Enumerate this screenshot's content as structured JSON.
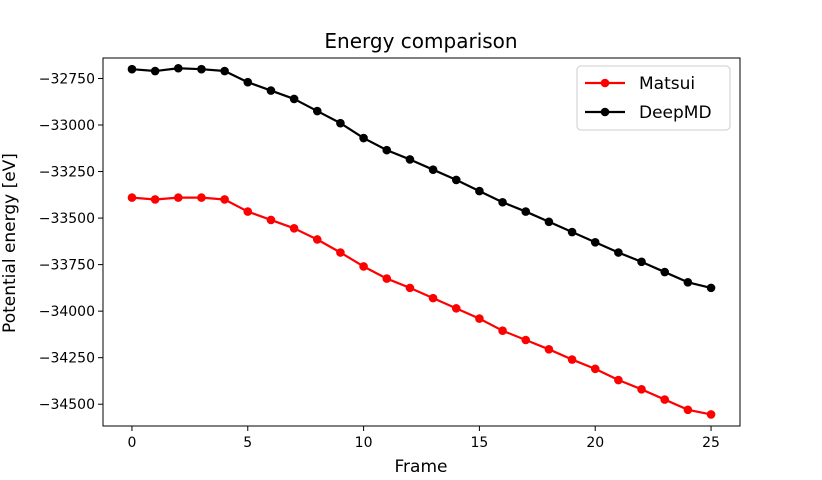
{
  "chart_data": {
    "type": "line",
    "title": "Energy comparison",
    "xlabel": "Frame",
    "ylabel": "Potential energy [eV]",
    "x": [
      0,
      1,
      2,
      3,
      4,
      5,
      6,
      7,
      8,
      9,
      10,
      11,
      12,
      13,
      14,
      15,
      16,
      17,
      18,
      19,
      20,
      21,
      22,
      23,
      24,
      25
    ],
    "xlim": [
      -1.25,
      26.25
    ],
    "ylim": [
      -34617,
      -32640
    ],
    "xticks": [
      0,
      5,
      10,
      15,
      20,
      25
    ],
    "xtick_labels": [
      "0",
      "5",
      "10",
      "15",
      "20",
      "25"
    ],
    "yticks": [
      -32750,
      -33000,
      -33250,
      -33500,
      -33750,
      -34000,
      -34250,
      -34500
    ],
    "ytick_labels": [
      "−32750",
      "−33000",
      "−33250",
      "−33500",
      "−33750",
      "−34000",
      "−34250",
      "−34500"
    ],
    "grid": false,
    "legend_position": "upper right",
    "series": [
      {
        "name": "Matsui",
        "color": "#ff0000",
        "marker": "circle",
        "values": [
          -33390,
          -33400,
          -33390,
          -33390,
          -33400,
          -33465,
          -33510,
          -33555,
          -33615,
          -33685,
          -33760,
          -33825,
          -33875,
          -33930,
          -33985,
          -34040,
          -34105,
          -34155,
          -34205,
          -34260,
          -34310,
          -34370,
          -34420,
          -34475,
          -34530,
          -34555
        ]
      },
      {
        "name": "DeepMD",
        "color": "#000000",
        "marker": "circle",
        "values": [
          -32700,
          -32710,
          -32695,
          -32700,
          -32710,
          -32770,
          -32815,
          -32860,
          -32925,
          -32990,
          -33070,
          -33135,
          -33185,
          -33240,
          -33295,
          -33355,
          -33415,
          -33465,
          -33520,
          -33575,
          -33630,
          -33685,
          -33735,
          -33790,
          -33845,
          -33875
        ]
      }
    ]
  }
}
